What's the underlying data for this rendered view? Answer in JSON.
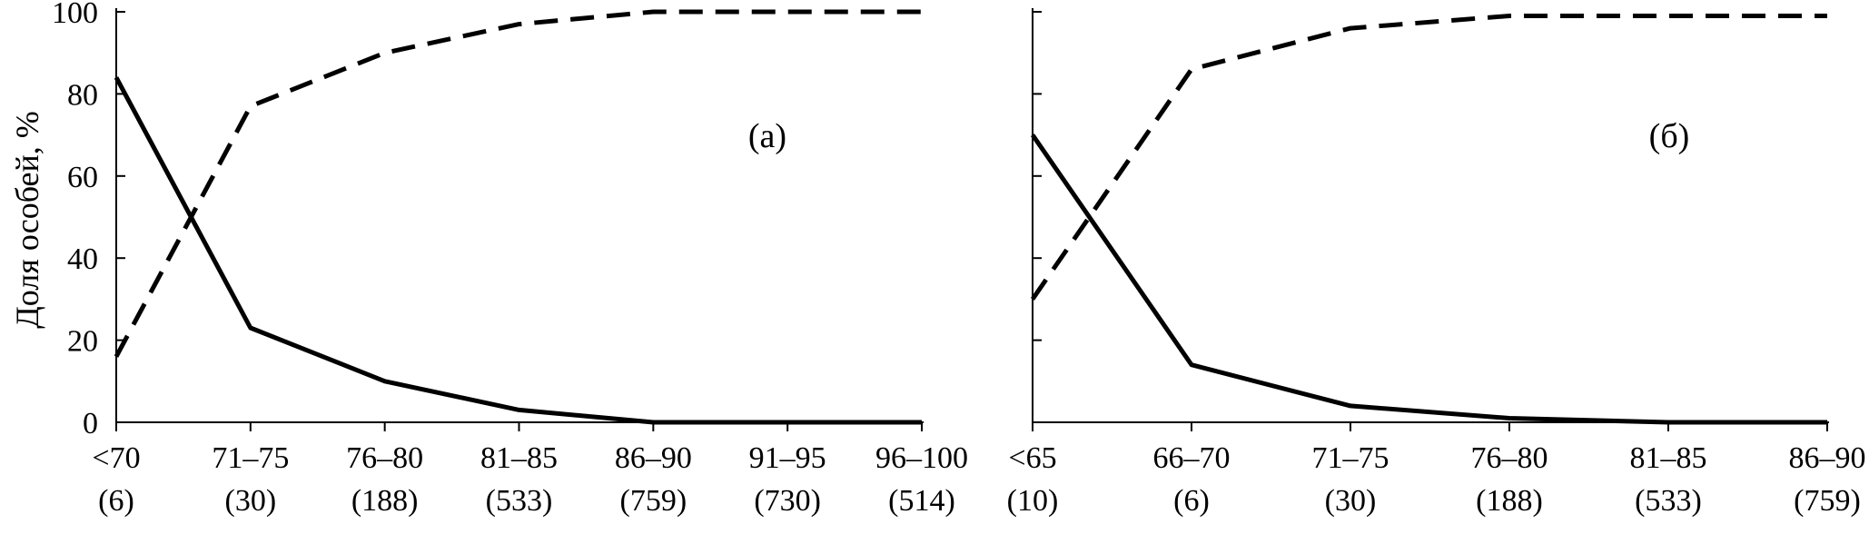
{
  "ylabel": "Доля особей, %",
  "chart_data": [
    {
      "type": "line",
      "panel_label": "(а)",
      "categories": [
        "<70",
        "71–75",
        "76–80",
        "81–85",
        "86–90",
        "91–95",
        "96–100"
      ],
      "counts": [
        "(6)",
        "(30)",
        "(188)",
        "(533)",
        "(759)",
        "(730)",
        "(514)"
      ],
      "ylim": [
        0,
        100
      ],
      "yticks": [
        0,
        20,
        40,
        60,
        80,
        100
      ],
      "series": [
        {
          "style": "solid",
          "values": [
            84,
            23,
            10,
            3,
            0,
            0,
            0
          ]
        },
        {
          "style": "dashed",
          "values": [
            16,
            77,
            90,
            97,
            100,
            100,
            100
          ]
        }
      ]
    },
    {
      "type": "line",
      "panel_label": "(б)",
      "categories": [
        "<65",
        "66–70",
        "71–75",
        "76–80",
        "81–85",
        "86–90"
      ],
      "counts": [
        "(10)",
        "(6)",
        "(30)",
        "(188)",
        "(533)",
        "(759)"
      ],
      "ylim": [
        0,
        100
      ],
      "yticks": [
        0,
        20,
        40,
        60,
        80,
        100
      ],
      "series": [
        {
          "style": "solid",
          "values": [
            70,
            14,
            4,
            1,
            0,
            0
          ]
        },
        {
          "style": "dashed",
          "values": [
            30,
            86,
            96,
            99,
            99,
            99
          ]
        }
      ]
    }
  ]
}
